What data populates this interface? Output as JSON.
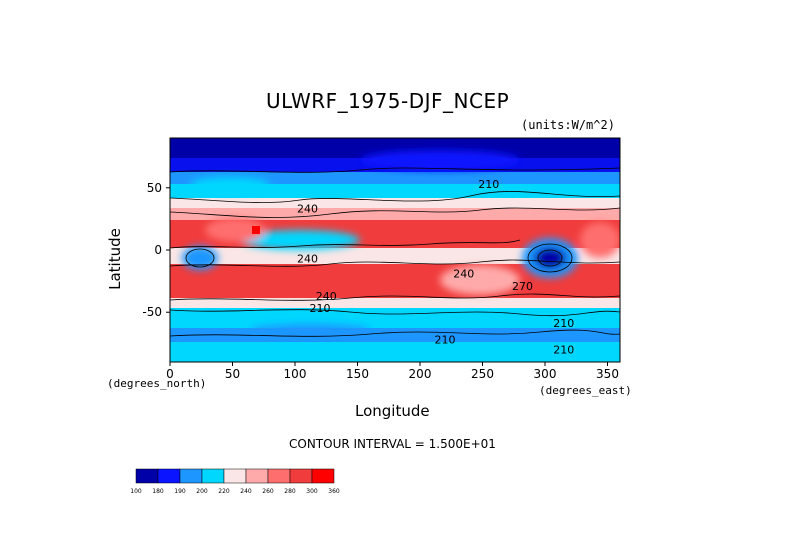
{
  "chart_data": {
    "type": "heatmap",
    "title": "ULWRF_1975-DJF_NCEP",
    "units_label": "(units:W/m^2)",
    "xlabel": "Longitude",
    "ylabel": "Latitude",
    "x_note": "(degrees_north)",
    "x_note_right": "(degrees_east)",
    "xlim": [
      0,
      360
    ],
    "ylim": [
      -90,
      90
    ],
    "x_ticks": [
      0,
      50,
      100,
      150,
      200,
      250,
      300,
      350
    ],
    "y_ticks": [
      -50,
      0,
      50
    ],
    "contour_interval_text": "CONTOUR INTERVAL = 1.500E+01",
    "colorbar_levels": [
      "100",
      "180",
      "190",
      "200",
      "220",
      "240",
      "260",
      "280",
      "300",
      "360"
    ],
    "colorbar_colors": [
      "#0000a8",
      "#0a14ff",
      "#1e96ff",
      "#00d7ff",
      "#fae6e6",
      "#ffaaaa",
      "#ff6e6e",
      "#f03c3c",
      "#ff0000"
    ],
    "contour_labels": [
      {
        "text": "240",
        "lon": 110,
        "lat": 30
      },
      {
        "text": "240",
        "lon": 110,
        "lat": -10
      },
      {
        "text": "240",
        "lon": 125,
        "lat": -40
      },
      {
        "text": "210",
        "lon": 120,
        "lat": -50
      },
      {
        "text": "210",
        "lon": 255,
        "lat": 50
      },
      {
        "text": "210",
        "lon": 315,
        "lat": -62
      },
      {
        "text": "210",
        "lon": 220,
        "lat": -75
      },
      {
        "text": "210",
        "lon": 315,
        "lat": -83
      },
      {
        "text": "270",
        "lon": 282,
        "lat": -32
      },
      {
        "text": "240",
        "lon": 235,
        "lat": -22
      }
    ]
  }
}
